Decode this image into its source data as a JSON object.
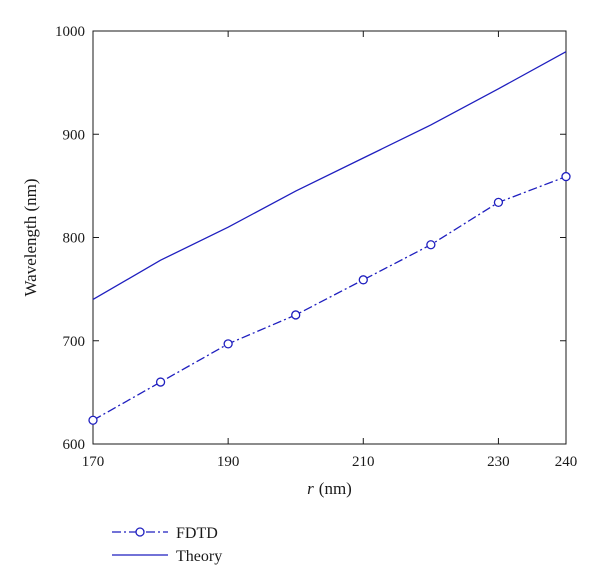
{
  "chart_data": {
    "type": "line",
    "xlabel_var": "r",
    "xlabel_unit": "(nm)",
    "ylabel": "Wavelength (nm)",
    "xlim": [
      170,
      240
    ],
    "ylim": [
      600,
      1000
    ],
    "xticks": [
      170,
      190,
      210,
      230,
      240
    ],
    "yticks": [
      600,
      700,
      800,
      900,
      1000
    ],
    "grid": false,
    "legend_position": "bottom-left, below plot",
    "series": [
      {
        "name": "FDTD",
        "style": "dash-dot with open circle markers",
        "color": "#1f1fbf",
        "x": [
          170,
          180,
          190,
          200,
          210,
          220,
          230,
          240
        ],
        "y": [
          623,
          660,
          697,
          725,
          759,
          793,
          834,
          859
        ]
      },
      {
        "name": "Theory",
        "style": "solid",
        "color": "#1f1fbf",
        "x": [
          170,
          180,
          190,
          200,
          210,
          220,
          230,
          240
        ],
        "y": [
          740,
          778,
          810,
          845,
          877,
          909,
          944,
          980
        ]
      }
    ]
  }
}
